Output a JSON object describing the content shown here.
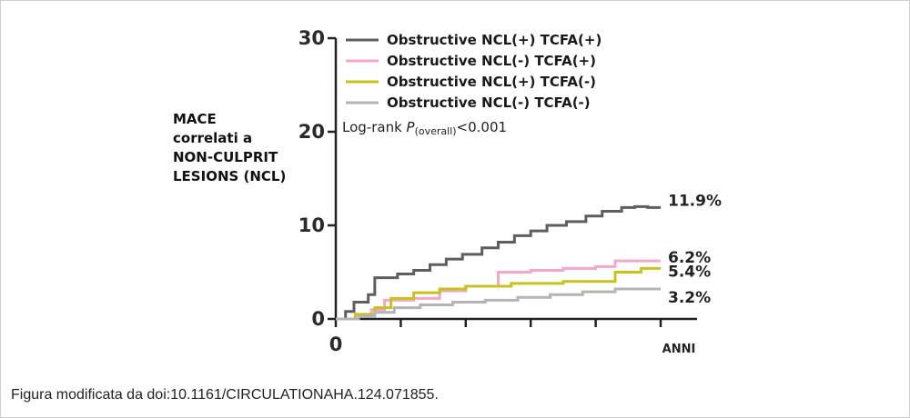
{
  "chart_data": {
    "type": "line",
    "ylabel": "MACE\ncorrelati a\nNON-CULPRIT\nLESIONS (NCL)",
    "x_unit_label": "ANNI",
    "xlim": [
      0,
      5
    ],
    "ylim": [
      0,
      30
    ],
    "y_ticks": [
      "0",
      "10",
      "20",
      "30"
    ],
    "x_tick_labels": [
      "0"
    ],
    "x_tick_positions": [
      0,
      1,
      2,
      3,
      4,
      5
    ],
    "annotation": {
      "prefix": "Log-rank ",
      "p": "P",
      "sub": "(overall)",
      "suffix": "<0.001"
    },
    "legend_position": "top",
    "series": [
      {
        "name": "Obstructive NCL(+) TCFA(+)",
        "color": "#5e5e5e",
        "end_label": "11.9%",
        "x": [
          0,
          0.15,
          0.28,
          0.5,
          0.6,
          0.95,
          1.2,
          1.45,
          1.7,
          1.95,
          2.25,
          2.5,
          2.75,
          3.0,
          3.25,
          3.55,
          3.85,
          4.1,
          4.4,
          4.6,
          4.8,
          5.0
        ],
        "y": [
          0,
          0.8,
          1.8,
          2.6,
          4.4,
          4.8,
          5.2,
          5.8,
          6.4,
          6.9,
          7.6,
          8.2,
          8.9,
          9.4,
          10.0,
          10.4,
          11.0,
          11.5,
          11.9,
          12.0,
          11.9,
          11.9
        ]
      },
      {
        "name": "Obstructive NCL(-) TCFA(+)",
        "color": "#f4a7c9",
        "end_label": "6.2%",
        "x": [
          0,
          0.3,
          0.55,
          0.75,
          1.2,
          1.6,
          2.0,
          2.5,
          3.0,
          3.5,
          4.0,
          4.3,
          5.0
        ],
        "y": [
          0,
          0.4,
          1.0,
          2.0,
          2.2,
          3.0,
          3.5,
          5.0,
          5.2,
          5.4,
          5.6,
          6.2,
          6.2
        ]
      },
      {
        "name": "Obstructive NCL(+) TCFA(-)",
        "color": "#c7c21c",
        "end_label": "5.4%",
        "x": [
          0,
          0.3,
          0.6,
          0.85,
          1.2,
          1.6,
          2.0,
          2.7,
          3.5,
          4.3,
          4.7,
          5.0
        ],
        "y": [
          0,
          0.5,
          1.2,
          2.2,
          2.8,
          3.2,
          3.5,
          3.8,
          4.0,
          5.0,
          5.4,
          5.4
        ]
      },
      {
        "name": "Obstructive NCL(-) TCFA(-)",
        "color": "#b4b4b4",
        "end_label": "3.2%",
        "x": [
          0,
          0.35,
          0.6,
          0.9,
          1.3,
          1.8,
          2.3,
          2.8,
          3.3,
          3.8,
          4.3,
          5.0
        ],
        "y": [
          0,
          0.3,
          0.7,
          1.2,
          1.5,
          1.8,
          2.0,
          2.3,
          2.6,
          2.9,
          3.2,
          3.2
        ]
      }
    ]
  },
  "caption": "Figura modificata da doi:10.1161/CIRCULATIONAHA.124.071855."
}
